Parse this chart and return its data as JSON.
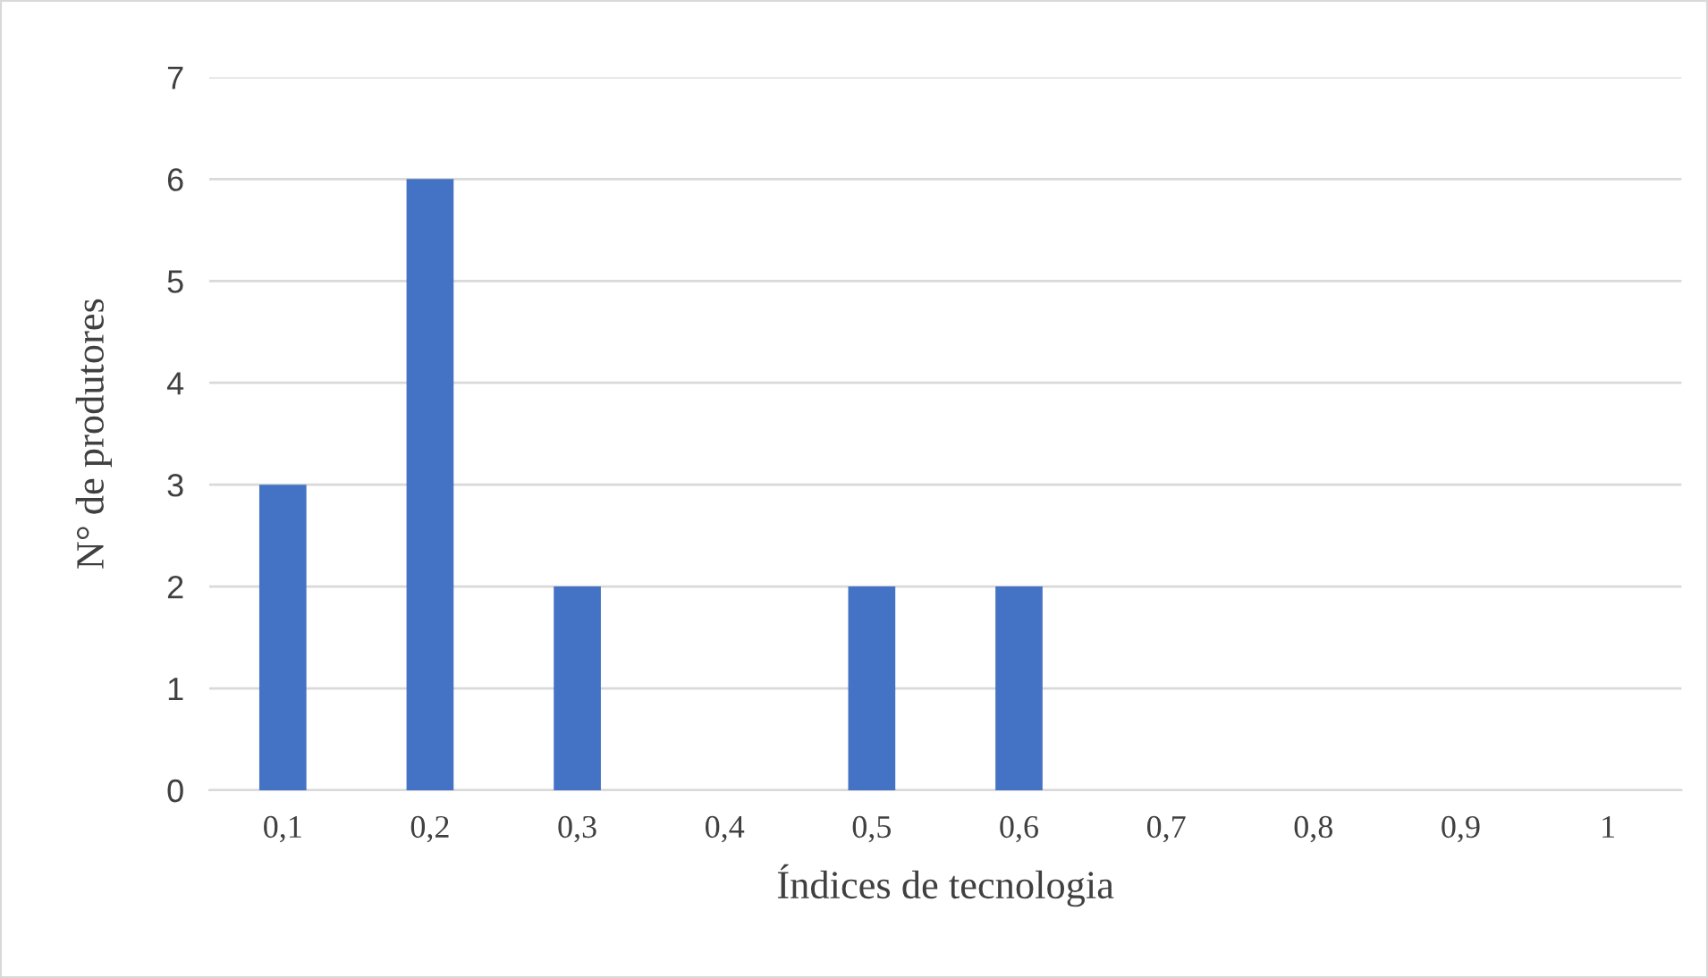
{
  "chart_data": {
    "type": "bar",
    "xlabel": "Índices de tecnologia",
    "ylabel": "N° de produtores",
    "categories": [
      "0,1",
      "0,2",
      "0,3",
      "0,4",
      "0,5",
      "0,6",
      "0,7",
      "0,8",
      "0,9",
      "1"
    ],
    "values": [
      3,
      6,
      2,
      0,
      2,
      2,
      0,
      0,
      0,
      0
    ],
    "color": "#4472c4",
    "ylim": [
      0,
      7
    ],
    "yticks": [
      0,
      1,
      2,
      3,
      4,
      5,
      6,
      7
    ],
    "grid": "y",
    "legend": false
  }
}
